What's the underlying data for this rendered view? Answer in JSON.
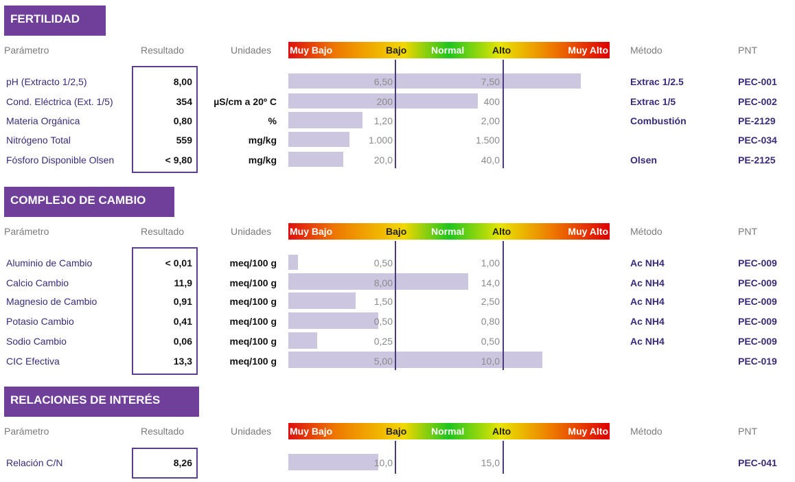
{
  "headers": {
    "parametro": "Parámetro",
    "resultado": "Resultado",
    "unidades": "Unidades",
    "metodo": "Método",
    "pnt": "PNT",
    "scale": [
      "Muy Bajo",
      "Bajo",
      "Normal",
      "Alto",
      "Muy Alto"
    ]
  },
  "colors": {
    "section": "#6f3f9a",
    "bar": "#cdc6e0",
    "accent": "#5b3e8e"
  },
  "sections": [
    {
      "title": "FERTILIDAD",
      "rows": [
        {
          "param": "pH (Extracto 1/2,5)",
          "result": "8,00",
          "unit": "",
          "low": "6,50",
          "high": "7,50",
          "method": "Extrac 1/2.5",
          "pnt": "PEC-001",
          "level": 0.91
        },
        {
          "param": "Cond. Eléctrica (Ext. 1/5)",
          "result": "354",
          "unit": "µS/cm a 20º C",
          "low": "200",
          "high": "400",
          "method": "Extrac 1/5",
          "pnt": "PEC-002",
          "level": 0.59
        },
        {
          "param": "Materia Orgánica",
          "result": "0,80",
          "unit": "%",
          "low": "1,20",
          "high": "2,00",
          "method": "Combustión",
          "pnt": "PE-2129",
          "level": 0.23
        },
        {
          "param": "Nitrógeno Total",
          "result": "559",
          "unit": "mg/kg",
          "low": "1.000",
          "high": "1.500",
          "method": "",
          "pnt": "PEC-034",
          "level": 0.19
        },
        {
          "param": "Fósforo Disponible Olsen",
          "result": "< 9,80",
          "unit": "mg/kg",
          "low": "20,0",
          "high": "40,0",
          "method": "Olsen",
          "pnt": "PE-2125",
          "level": 0.17
        }
      ]
    },
    {
      "title": "COMPLEJO DE CAMBIO",
      "rows": [
        {
          "param": "Aluminio de Cambio",
          "result": "< 0,01",
          "unit": "meq/100 g",
          "low": "0,50",
          "high": "1,00",
          "method": "Ac NH4",
          "pnt": "PEC-009",
          "level": 0.03
        },
        {
          "param": "Calcio Cambio",
          "result": "11,9",
          "unit": "meq/100 g",
          "low": "8,00",
          "high": "14,0",
          "method": "Ac NH4",
          "pnt": "PEC-009",
          "level": 0.56
        },
        {
          "param": "Magnesio de Cambio",
          "result": "0,91",
          "unit": "meq/100 g",
          "low": "1,50",
          "high": "2,50",
          "method": "Ac NH4",
          "pnt": "PEC-009",
          "level": 0.21
        },
        {
          "param": "Potasio Cambio",
          "result": "0,41",
          "unit": "meq/100 g",
          "low": "0,50",
          "high": "0,80",
          "method": "Ac NH4",
          "pnt": "PEC-009",
          "level": 0.28
        },
        {
          "param": "Sodio Cambio",
          "result": "0,06",
          "unit": "meq/100 g",
          "low": "0,25",
          "high": "0,50",
          "method": "Ac NH4",
          "pnt": "PEC-009",
          "level": 0.09
        },
        {
          "param": "CIC Efectiva",
          "result": "13,3",
          "unit": "meq/100 g",
          "low": "5,00",
          "high": "10,0",
          "method": "",
          "pnt": "PEC-019",
          "level": 0.79
        }
      ]
    },
    {
      "title": "RELACIONES DE INTERÉS",
      "rows": [
        {
          "param": "Relación C/N",
          "result": "8,26",
          "unit": "",
          "low": "10,0",
          "high": "15,0",
          "method": "",
          "pnt": "PEC-041",
          "level": 0.28
        }
      ]
    }
  ]
}
